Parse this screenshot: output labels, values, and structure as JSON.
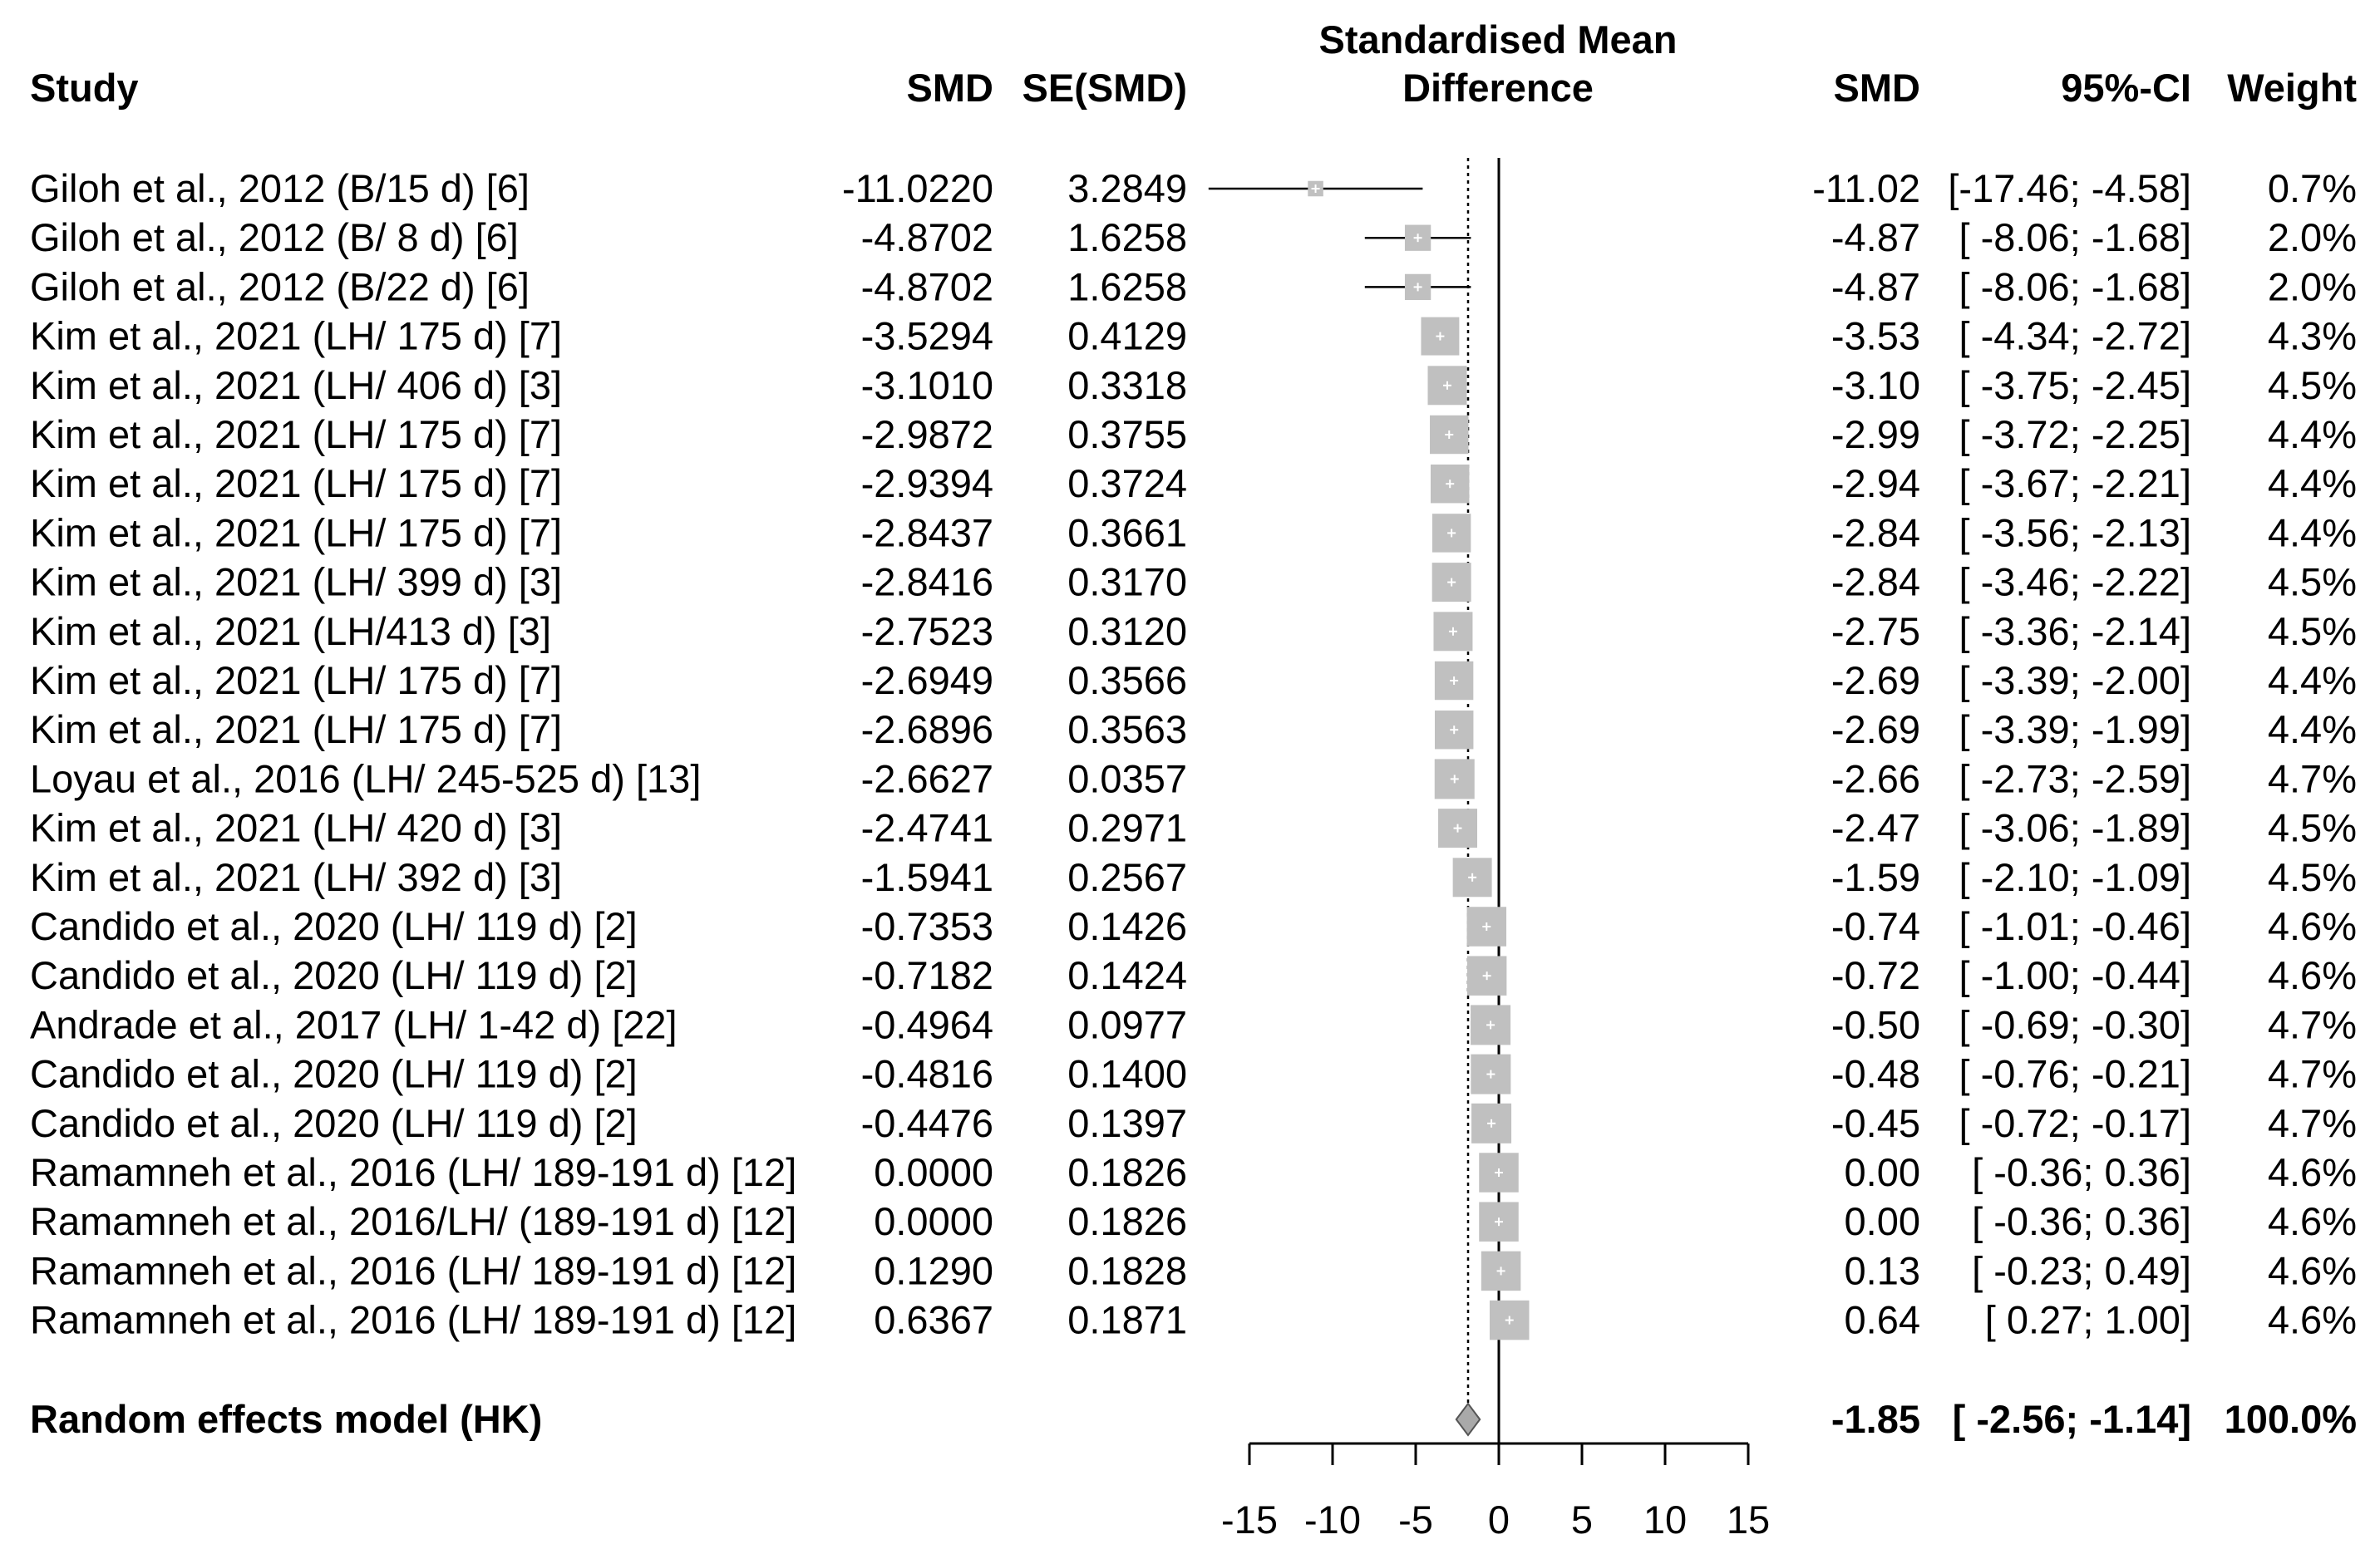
{
  "chart_data": {
    "type": "forest",
    "headers": {
      "study": "Study",
      "smd_left": "SMD",
      "se": "SE(SMD)",
      "plot_title_line1": "Standardised Mean",
      "plot_title_line2": "Difference",
      "smd_right": "SMD",
      "ci": "95%-CI",
      "weight": "Weight"
    },
    "studies": [
      {
        "label": "Giloh et al., 2012 (B/15 d) [6]",
        "smd_raw": "-11.0220",
        "se": "3.2849",
        "smd": "-11.02",
        "ci": "[-17.46; -4.58]",
        "weight": "0.7%",
        "est": -11.022,
        "lo": -17.46,
        "hi": -4.58,
        "w": 0.7
      },
      {
        "label": "Giloh et al., 2012 (B/ 8 d) [6]",
        "smd_raw": "-4.8702",
        "se": "1.6258",
        "smd": "-4.87",
        "ci": "[ -8.06; -1.68]",
        "weight": "2.0%",
        "est": -4.8702,
        "lo": -8.06,
        "hi": -1.68,
        "w": 2.0
      },
      {
        "label": "Giloh et al., 2012 (B/22 d) [6]",
        "smd_raw": "-4.8702",
        "se": "1.6258",
        "smd": "-4.87",
        "ci": "[ -8.06; -1.68]",
        "weight": "2.0%",
        "est": -4.8702,
        "lo": -8.06,
        "hi": -1.68,
        "w": 2.0
      },
      {
        "label": "Kim et al., 2021  (LH/ 175 d) [7]",
        "smd_raw": "-3.5294",
        "se": "0.4129",
        "smd": "-3.53",
        "ci": "[ -4.34; -2.72]",
        "weight": "4.3%",
        "est": -3.5294,
        "lo": -4.34,
        "hi": -2.72,
        "w": 4.3
      },
      {
        "label": "Kim et al., 2021  (LH/ 406 d) [3]",
        "smd_raw": "-3.1010",
        "se": "0.3318",
        "smd": "-3.10",
        "ci": "[ -3.75; -2.45]",
        "weight": "4.5%",
        "est": -3.101,
        "lo": -3.75,
        "hi": -2.45,
        "w": 4.5
      },
      {
        "label": "Kim et al., 2021  (LH/ 175 d) [7]",
        "smd_raw": "-2.9872",
        "se": "0.3755",
        "smd": "-2.99",
        "ci": "[ -3.72; -2.25]",
        "weight": "4.4%",
        "est": -2.9872,
        "lo": -3.72,
        "hi": -2.25,
        "w": 4.4
      },
      {
        "label": "Kim et al., 2021  (LH/ 175 d) [7]",
        "smd_raw": "-2.9394",
        "se": "0.3724",
        "smd": "-2.94",
        "ci": "[ -3.67; -2.21]",
        "weight": "4.4%",
        "est": -2.9394,
        "lo": -3.67,
        "hi": -2.21,
        "w": 4.4
      },
      {
        "label": "Kim et al., 2021  (LH/ 175 d) [7]",
        "smd_raw": "-2.8437",
        "se": "0.3661",
        "smd": "-2.84",
        "ci": "[ -3.56; -2.13]",
        "weight": "4.4%",
        "est": -2.8437,
        "lo": -3.56,
        "hi": -2.13,
        "w": 4.4
      },
      {
        "label": "Kim et al., 2021  (LH/ 399 d) [3]",
        "smd_raw": "-2.8416",
        "se": "0.3170",
        "smd": "-2.84",
        "ci": "[ -3.46; -2.22]",
        "weight": "4.5%",
        "est": -2.8416,
        "lo": -3.46,
        "hi": -2.22,
        "w": 4.5
      },
      {
        "label": "Kim et al., 2021  (LH/413 d) [3]",
        "smd_raw": "-2.7523",
        "se": "0.3120",
        "smd": "-2.75",
        "ci": "[ -3.36; -2.14]",
        "weight": "4.5%",
        "est": -2.7523,
        "lo": -3.36,
        "hi": -2.14,
        "w": 4.5
      },
      {
        "label": "Kim et al., 2021  (LH/ 175 d) [7]",
        "smd_raw": "-2.6949",
        "se": "0.3566",
        "smd": "-2.69",
        "ci": "[ -3.39; -2.00]",
        "weight": "4.4%",
        "est": -2.6949,
        "lo": -3.39,
        "hi": -2.0,
        "w": 4.4
      },
      {
        "label": "Kim et al., 2021  (LH/ 175 d) [7]",
        "smd_raw": "-2.6896",
        "se": "0.3563",
        "smd": "-2.69",
        "ci": "[ -3.39; -1.99]",
        "weight": "4.4%",
        "est": -2.6896,
        "lo": -3.39,
        "hi": -1.99,
        "w": 4.4
      },
      {
        "label": "Loyau et al., 2016 (LH/ 245-525 d) [13]",
        "smd_raw": "-2.6627",
        "se": "0.0357",
        "smd": "-2.66",
        "ci": "[ -2.73; -2.59]",
        "weight": "4.7%",
        "est": -2.6627,
        "lo": -2.73,
        "hi": -2.59,
        "w": 4.7
      },
      {
        "label": "Kim et al., 2021  (LH/ 420 d) [3]",
        "smd_raw": "-2.4741",
        "se": "0.2971",
        "smd": "-2.47",
        "ci": "[ -3.06; -1.89]",
        "weight": "4.5%",
        "est": -2.4741,
        "lo": -3.06,
        "hi": -1.89,
        "w": 4.5
      },
      {
        "label": "Kim et al., 2021  (LH/ 392 d) [3]",
        "smd_raw": "-1.5941",
        "se": "0.2567",
        "smd": "-1.59",
        "ci": "[ -2.10; -1.09]",
        "weight": "4.5%",
        "est": -1.5941,
        "lo": -2.1,
        "hi": -1.09,
        "w": 4.5
      },
      {
        "label": "Candido et al., 2020 (LH/ 119 d) [2]",
        "smd_raw": "-0.7353",
        "se": "0.1426",
        "smd": "-0.74",
        "ci": "[ -1.01; -0.46]",
        "weight": "4.6%",
        "est": -0.7353,
        "lo": -1.01,
        "hi": -0.46,
        "w": 4.6
      },
      {
        "label": "Candido et al., 2020 (LH/ 119 d) [2]",
        "smd_raw": "-0.7182",
        "se": "0.1424",
        "smd": "-0.72",
        "ci": "[ -1.00; -0.44]",
        "weight": "4.6%",
        "est": -0.7182,
        "lo": -1.0,
        "hi": -0.44,
        "w": 4.6
      },
      {
        "label": "Andrade et al., 2017 (LH/ 1-42 d) [22]",
        "smd_raw": "-0.4964",
        "se": "0.0977",
        "smd": "-0.50",
        "ci": "[ -0.69; -0.30]",
        "weight": "4.7%",
        "est": -0.4964,
        "lo": -0.69,
        "hi": -0.3,
        "w": 4.7
      },
      {
        "label": "Candido et al., 2020 (LH/ 119 d) [2]",
        "smd_raw": "-0.4816",
        "se": "0.1400",
        "smd": "-0.48",
        "ci": "[ -0.76; -0.21]",
        "weight": "4.7%",
        "est": -0.4816,
        "lo": -0.76,
        "hi": -0.21,
        "w": 4.7
      },
      {
        "label": "Candido et al., 2020 (LH/ 119 d) [2]",
        "smd_raw": "-0.4476",
        "se": "0.1397",
        "smd": "-0.45",
        "ci": "[ -0.72; -0.17]",
        "weight": "4.7%",
        "est": -0.4476,
        "lo": -0.72,
        "hi": -0.17,
        "w": 4.7
      },
      {
        "label": "Ramamneh et al., 2016 (LH/ 189-191 d) [12]",
        "smd_raw": "0.0000",
        "se": "0.1826",
        "smd": "0.00",
        "ci": "[ -0.36;  0.36]",
        "weight": "4.6%",
        "est": 0.0,
        "lo": -0.36,
        "hi": 0.36,
        "w": 4.6
      },
      {
        "label": "Ramamneh et al., 2016/LH/ (189-191 d) [12]",
        "smd_raw": "0.0000",
        "se": "0.1826",
        "smd": "0.00",
        "ci": "[ -0.36;  0.36]",
        "weight": "4.6%",
        "est": 0.0,
        "lo": -0.36,
        "hi": 0.36,
        "w": 4.6
      },
      {
        "label": "Ramamneh et al., 2016 (LH/ 189-191 d) [12]",
        "smd_raw": "0.1290",
        "se": "0.1828",
        "smd": "0.13",
        "ci": "[ -0.23;  0.49]",
        "weight": "4.6%",
        "est": 0.129,
        "lo": -0.23,
        "hi": 0.49,
        "w": 4.6
      },
      {
        "label": "Ramamneh et al., 2016 (LH/ 189-191 d) [12]",
        "smd_raw": "0.6367",
        "se": "0.1871",
        "smd": "0.64",
        "ci": "[  0.27;  1.00]",
        "weight": "4.6%",
        "est": 0.6367,
        "lo": 0.27,
        "hi": 1.0,
        "w": 4.6
      }
    ],
    "pooled": {
      "label": "Random effects model (HK)",
      "smd": "-1.85",
      "ci": "[ -2.56; -1.14]",
      "weight": "100.0%",
      "est": -1.85,
      "lo": -2.56,
      "hi": -1.14
    },
    "x_ticks": [
      -15,
      -10,
      -5,
      0,
      5,
      10,
      15
    ],
    "x_tick_labels": [
      "-15",
      "-10",
      "-5",
      "0",
      "5",
      "10",
      "15"
    ],
    "xlim": [
      -15,
      15
    ],
    "null_line": 0,
    "grid": false,
    "colors": {
      "box": "#c0c0c0",
      "line": "#000000",
      "diamond": "#a9a9a9",
      "text": "#000000"
    }
  }
}
